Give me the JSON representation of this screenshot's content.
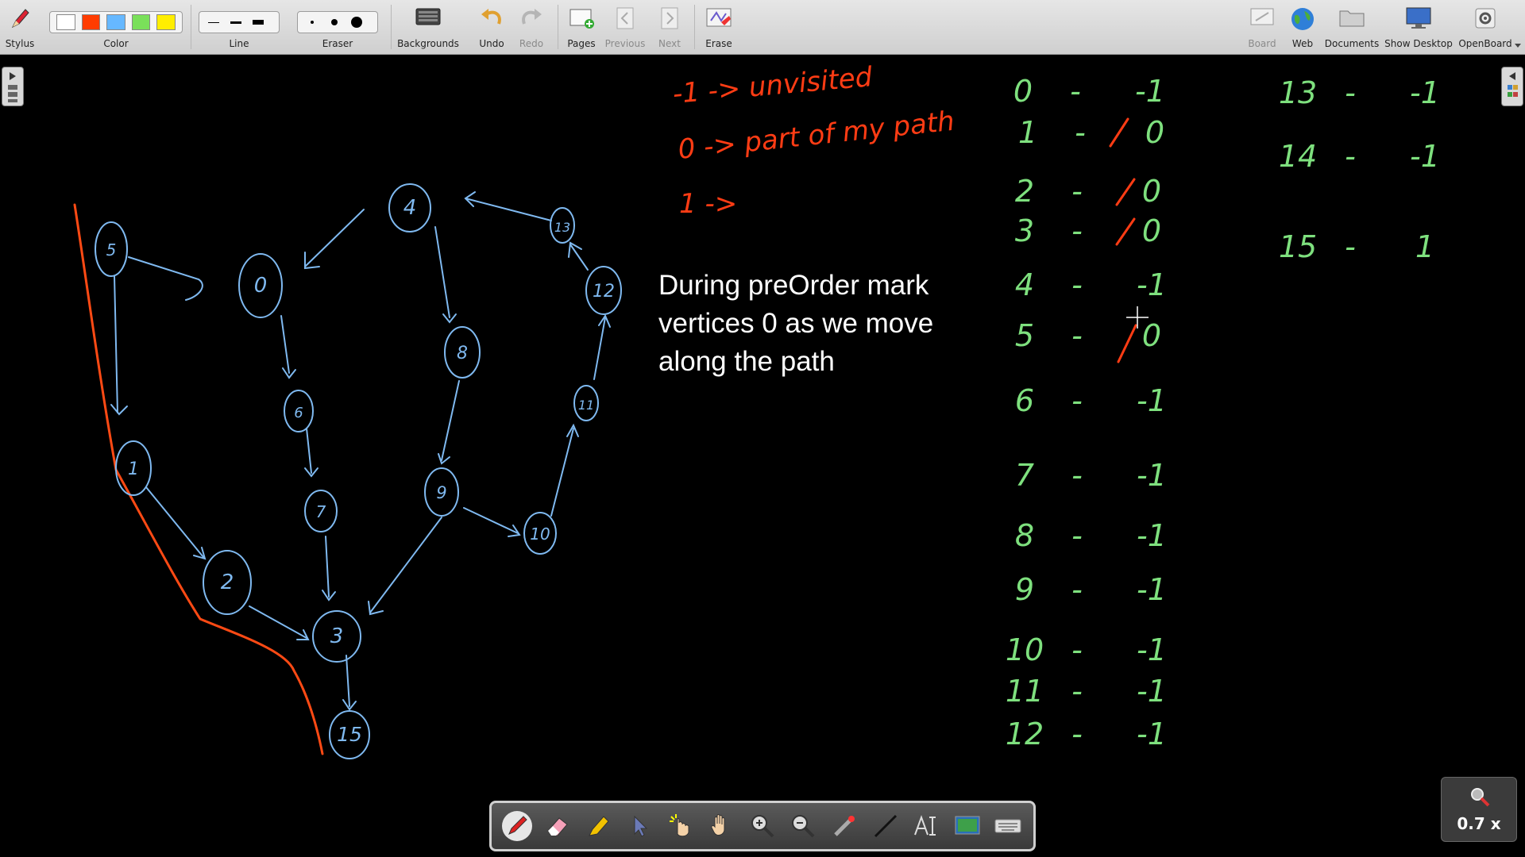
{
  "toolbar": {
    "stylus": "Stylus",
    "color": "Color",
    "line": "Line",
    "eraser": "Eraser",
    "backgrounds": "Backgrounds",
    "undo": "Undo",
    "redo": "Redo",
    "pages": "Pages",
    "previous": "Previous",
    "next": "Next",
    "erase": "Erase",
    "board": "Board",
    "web": "Web",
    "documents": "Documents",
    "show_desktop": "Show Desktop",
    "openboard": "OpenBoard"
  },
  "colors": {
    "swatches": [
      "#ffffff",
      "#ff3c00",
      "#66b8ff",
      "#7ae05a",
      "#ffee00"
    ],
    "graph_ink": "#7fb9f0",
    "path_ink": "#ff4a14",
    "table_ink": "#7ee07e",
    "highlight_ink": "#ff3c14"
  },
  "legend": {
    "line1": "-1 -> unvisited",
    "line2": "0 -> part of my path",
    "line3": "1 ->"
  },
  "note": {
    "text": "During preOrder mark\nvertices 0 as we move\nalong the path"
  },
  "graph": {
    "nodes": [
      "5",
      "0",
      "4",
      "13",
      "12",
      "1",
      "6",
      "8",
      "11",
      "9",
      "10",
      "7",
      "2",
      "3",
      "15"
    ]
  },
  "table": {
    "rows": [
      {
        "v": "0",
        "val": "-1"
      },
      {
        "v": "1",
        "val": "0"
      },
      {
        "v": "2",
        "val": "0"
      },
      {
        "v": "3",
        "val": "0"
      },
      {
        "v": "4",
        "val": "-1"
      },
      {
        "v": "5",
        "val": "0"
      },
      {
        "v": "6",
        "val": "-1"
      },
      {
        "v": "7",
        "val": "-1"
      },
      {
        "v": "8",
        "val": "-1"
      },
      {
        "v": "9",
        "val": "-1"
      },
      {
        "v": "10",
        "val": "-1"
      },
      {
        "v": "11",
        "val": "-1"
      },
      {
        "v": "12",
        "val": "-1"
      },
      {
        "v": "13",
        "val": "-1"
      },
      {
        "v": "14",
        "val": "-1"
      },
      {
        "v": "15",
        "val": "1"
      }
    ]
  },
  "zoom": {
    "label": "0.7 x"
  }
}
